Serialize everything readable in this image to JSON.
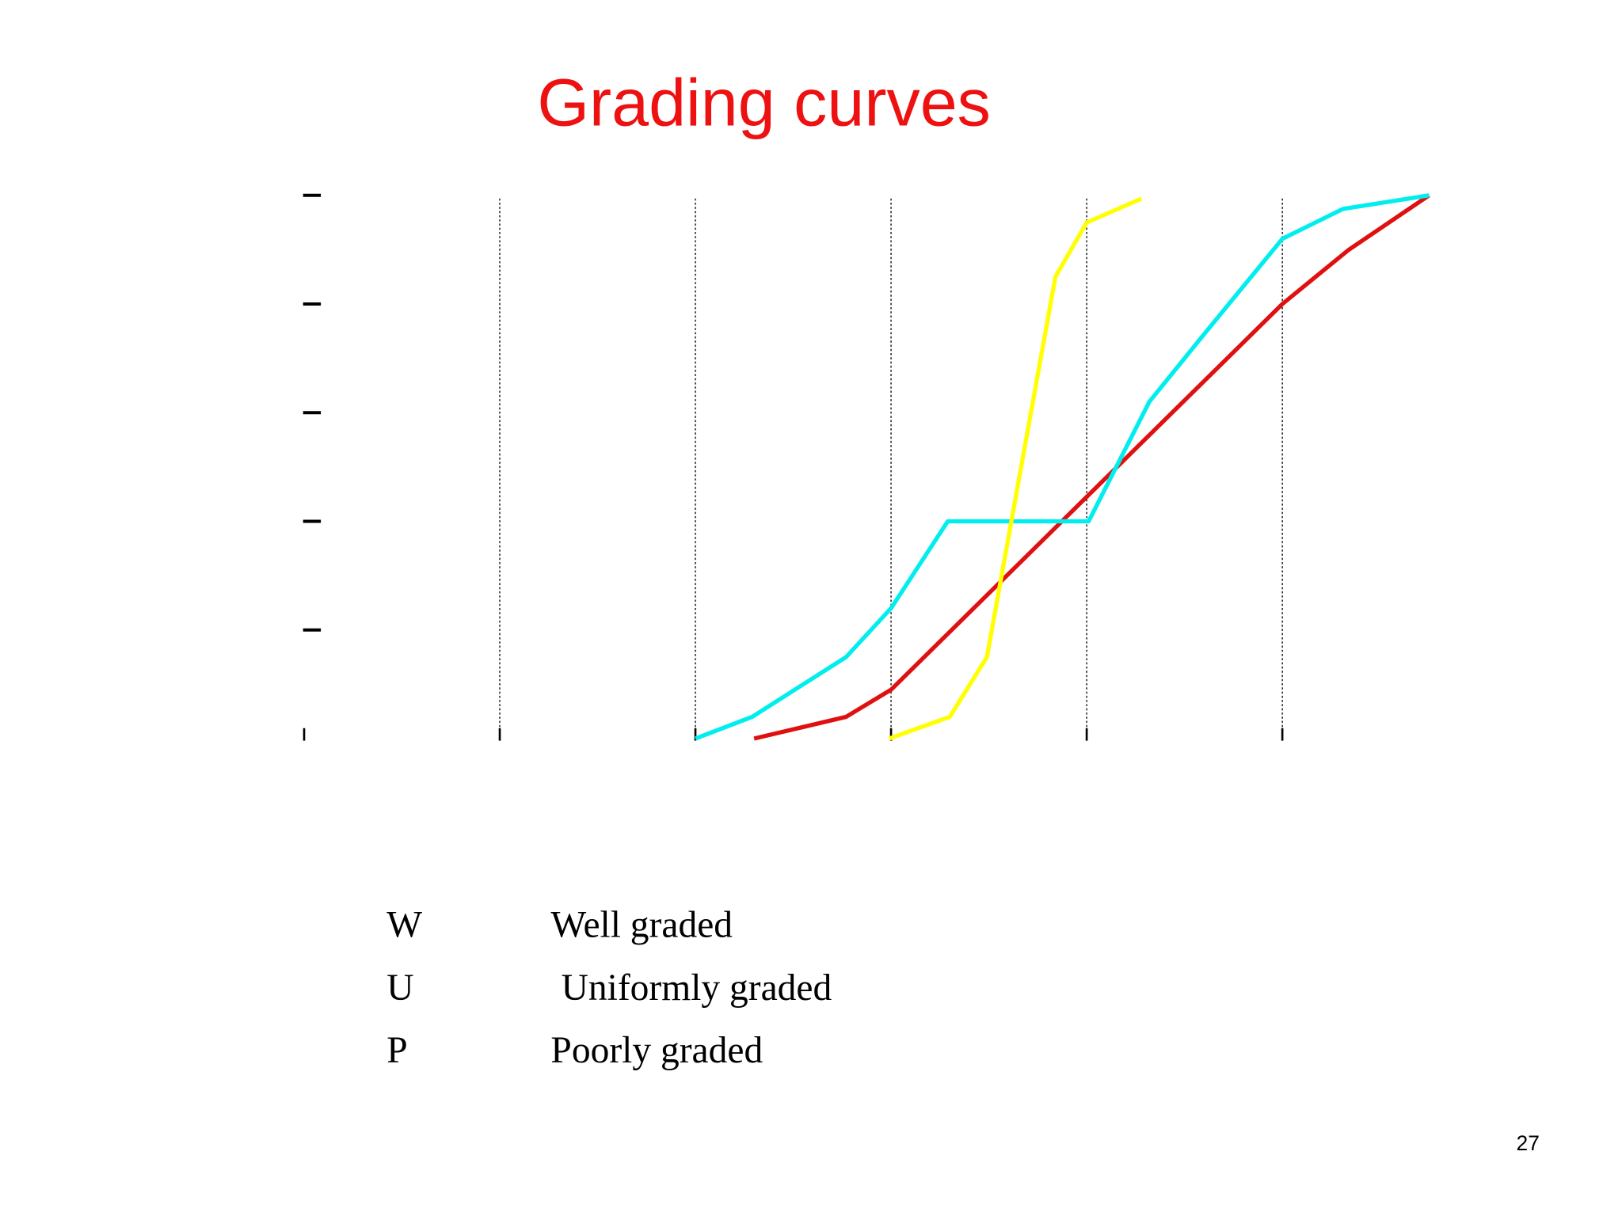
{
  "chart_data": {
    "type": "line",
    "title": "Grading curves",
    "xlim": [
      0,
      6
    ],
    "xticks": [
      0,
      1,
      2,
      3,
      4,
      5
    ],
    "ylim": [
      0,
      100
    ],
    "yticks": [
      0,
      20,
      40,
      60,
      80,
      100
    ],
    "grid": true,
    "series": [
      {
        "color": "#e01010",
        "x": [
          2.3,
          2.77,
          3,
          5,
          5.34,
          5.75
        ],
        "values": [
          0,
          4,
          9,
          80,
          90,
          100
        ]
      },
      {
        "color": "#00eeee",
        "x": [
          2,
          2.29,
          2.77,
          3,
          3.29,
          4.01,
          4.32,
          4.59,
          5,
          5.31,
          5.75
        ],
        "values": [
          0,
          4,
          15,
          24,
          40,
          40,
          62,
          74,
          92,
          97.5,
          100
        ]
      },
      {
        "color": "#ffff00",
        "x": [
          2.99,
          3.3,
          3.49,
          3.84,
          4,
          4.28
        ],
        "values": [
          0,
          4,
          15,
          85,
          95,
          99.4
        ]
      }
    ],
    "key": [
      {
        "code": "W",
        "label": "Well graded"
      },
      {
        "code": "U",
        "label": "Uniformly graded"
      },
      {
        "code": "P",
        "label": "Poorly graded"
      }
    ],
    "page_number": "27"
  }
}
